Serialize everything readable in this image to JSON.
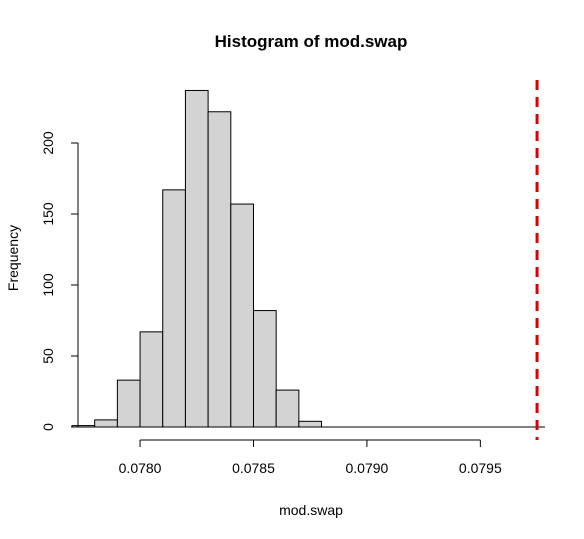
{
  "chart_data": {
    "type": "bar",
    "subtype": "histogram",
    "title": "Histogram of mod.swap",
    "xlabel": "mod.swap",
    "ylabel": "Frequency",
    "bin_width": 0.0001,
    "bins": [
      {
        "start": 0.0777,
        "end": 0.0778,
        "count": 1
      },
      {
        "start": 0.0778,
        "end": 0.0779,
        "count": 5
      },
      {
        "start": 0.0779,
        "end": 0.078,
        "count": 33
      },
      {
        "start": 0.078,
        "end": 0.0781,
        "count": 67
      },
      {
        "start": 0.0781,
        "end": 0.0782,
        "count": 167
      },
      {
        "start": 0.0782,
        "end": 0.0783,
        "count": 237
      },
      {
        "start": 0.0783,
        "end": 0.0784,
        "count": 222
      },
      {
        "start": 0.0784,
        "end": 0.0785,
        "count": 157
      },
      {
        "start": 0.0785,
        "end": 0.0786,
        "count": 82
      },
      {
        "start": 0.0786,
        "end": 0.0787,
        "count": 26
      },
      {
        "start": 0.0787,
        "end": 0.0788,
        "count": 4
      }
    ],
    "reference_line": {
      "x": 0.07975,
      "color": "#dd0000",
      "style": "dashed"
    },
    "x_ticks": [
      "0.0780",
      "0.0785",
      "0.0790",
      "0.0795"
    ],
    "x_tick_values": [
      0.078,
      0.0785,
      0.079,
      0.0795
    ],
    "y_ticks": [
      "0",
      "50",
      "100",
      "150",
      "200"
    ],
    "y_tick_values": [
      0,
      50,
      100,
      150,
      200
    ],
    "bar_fill": "#d3d3d3",
    "bar_stroke": "#000000",
    "grid": false
  }
}
